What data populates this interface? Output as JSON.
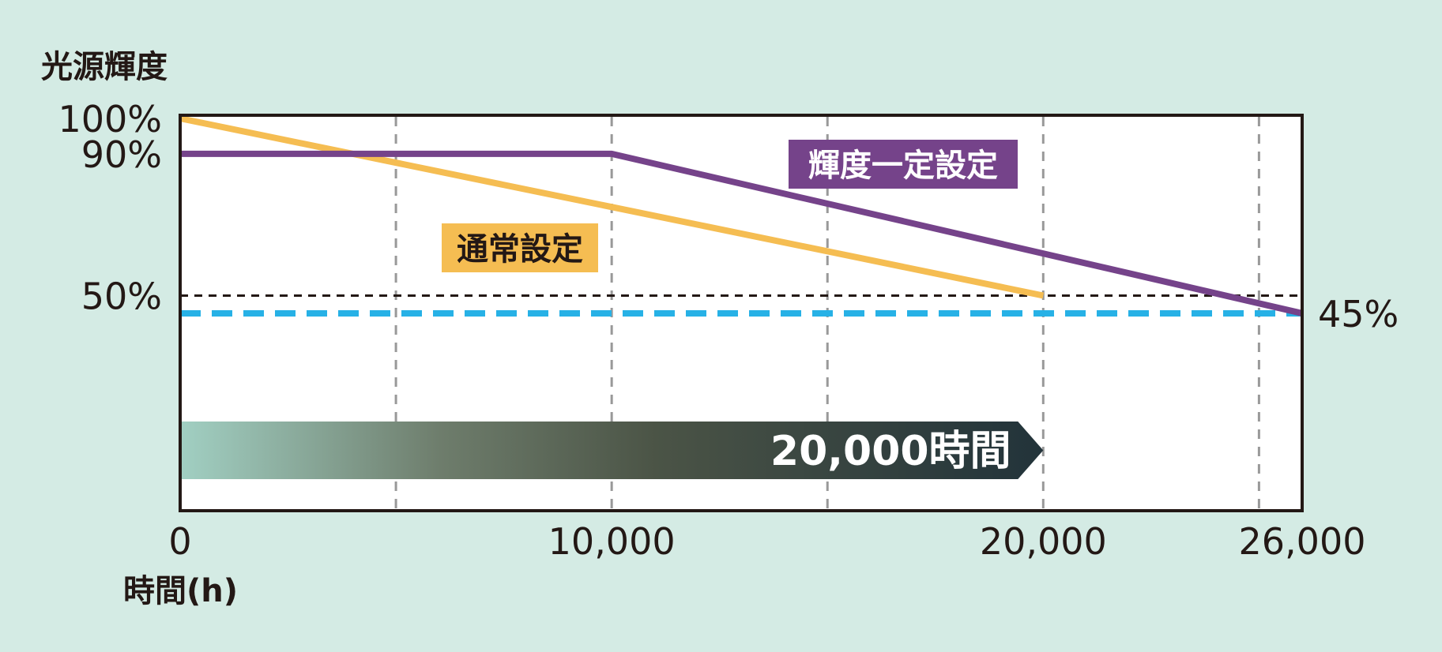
{
  "chart_data": {
    "type": "line",
    "ylabel": "光源輝度",
    "xlabel": "時間(h)",
    "x_ticks": [
      "0",
      "10,000",
      "20,000",
      "26,000"
    ],
    "y_ticks": [
      "100%",
      "90%",
      "50%"
    ],
    "xlim": [
      0,
      26000
    ],
    "ylim": [
      0,
      100
    ],
    "x_gridlines": [
      5000,
      10000,
      15000,
      20000,
      25000
    ],
    "series": [
      {
        "name": "通常設定",
        "color": "#f5bd52",
        "points": [
          [
            0,
            100
          ],
          [
            20000,
            50
          ]
        ]
      },
      {
        "name": "輝度一定設定",
        "color": "#75438a",
        "points": [
          [
            0,
            90
          ],
          [
            10000,
            90
          ],
          [
            26000,
            45
          ]
        ]
      }
    ],
    "reference_lines": [
      {
        "value": 50,
        "color": "#231815",
        "style": "dashed"
      },
      {
        "value": 45,
        "color": "#27b1e6",
        "style": "dashed",
        "label": "45%"
      }
    ],
    "duration_band": {
      "label": "20,000時間",
      "end_x": 20000,
      "gradient": [
        "#a1cfc2",
        "#6e7d6c",
        "#4b5446",
        "#22333a"
      ]
    },
    "label_colors": {
      "normal": "#f5bd52",
      "constant": "#75438a"
    }
  }
}
